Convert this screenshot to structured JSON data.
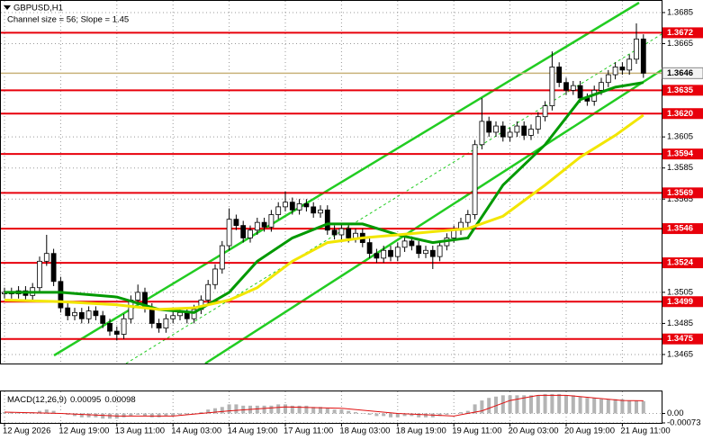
{
  "chart_data": [
    {
      "type": "candlestick",
      "title": "GBPUSD,H1",
      "subtitle": "Channel size = 56; Slope = 1.45",
      "categories": [
        "12 Aug 2026",
        null,
        null,
        null,
        null,
        null,
        null,
        null,
        "12 Aug 19:00",
        null,
        null,
        null,
        null,
        null,
        null,
        null,
        "13 Aug 11:00",
        null,
        null,
        null,
        null,
        null,
        null,
        null,
        "14 Aug 03:00",
        null,
        null,
        null,
        null,
        null,
        null,
        null,
        "14 Aug 19:00",
        null,
        null,
        null,
        null,
        null,
        null,
        null,
        "17 Aug 11:00",
        null,
        null,
        null,
        null,
        null,
        null,
        null,
        "18 Aug 03:00",
        null,
        null,
        null,
        null,
        null,
        null,
        null,
        "18 Aug 19:00",
        null,
        null,
        null,
        null,
        null,
        null,
        null,
        "19 Aug 11:00",
        null,
        null,
        null,
        null,
        null,
        null,
        null,
        "20 Aug 03:00",
        null,
        null,
        null,
        null,
        null,
        null,
        null,
        "20 Aug 19:00",
        null,
        null,
        null,
        null,
        null,
        null,
        null,
        "21 Aug 11:00",
        null,
        null,
        null
      ],
      "open": [
        1.3504,
        1.3505,
        1.3504,
        1.3506,
        1.3503,
        1.3508,
        1.3525,
        1.353,
        1.3512,
        1.3495,
        1.349,
        1.3492,
        1.3488,
        1.3493,
        1.349,
        1.3485,
        1.348,
        1.3478,
        1.3488,
        1.35,
        1.3505,
        1.3495,
        1.3485,
        1.3482,
        1.3488,
        1.349,
        1.3492,
        1.3488,
        1.3494,
        1.35,
        1.351,
        1.352,
        1.3535,
        1.3552,
        1.3548,
        1.354,
        1.3545,
        1.355,
        1.3547,
        1.3555,
        1.356,
        1.3563,
        1.3558,
        1.3562,
        1.356,
        1.3556,
        1.3558,
        1.3545,
        1.3542,
        1.3546,
        1.354,
        1.3543,
        1.3537,
        1.353,
        1.3527,
        1.3532,
        1.3528,
        1.3534,
        1.3538,
        1.3535,
        1.353,
        1.3532,
        1.3528,
        1.3535,
        1.354,
        1.3545,
        1.355,
        1.3555,
        1.36,
        1.3615,
        1.3608,
        1.3612,
        1.3605,
        1.3608,
        1.3612,
        1.3606,
        1.361,
        1.3618,
        1.3625,
        1.365,
        1.364,
        1.3635,
        1.3638,
        1.363,
        1.3628,
        1.3635,
        1.364,
        1.3645,
        1.365,
        1.3648,
        1.3655,
        1.3668
      ],
      "high": [
        1.3508,
        1.3508,
        1.3509,
        1.3509,
        1.3511,
        1.3528,
        1.3542,
        1.3533,
        1.3515,
        1.3498,
        1.3495,
        1.3495,
        1.3496,
        1.3496,
        1.3493,
        1.3488,
        1.3483,
        1.3491,
        1.3503,
        1.351,
        1.3508,
        1.3498,
        1.3488,
        1.3491,
        1.3493,
        1.3495,
        1.3495,
        1.3497,
        1.3503,
        1.3513,
        1.3523,
        1.3538,
        1.3559,
        1.3555,
        1.3551,
        1.3548,
        1.3553,
        1.3553,
        1.3558,
        1.3563,
        1.357,
        1.3566,
        1.3565,
        1.3565,
        1.3563,
        1.3561,
        1.3561,
        1.3548,
        1.3549,
        1.3549,
        1.3546,
        1.3546,
        1.354,
        1.3533,
        1.3535,
        1.3535,
        1.3537,
        1.3541,
        1.3541,
        1.3538,
        1.3535,
        1.3535,
        1.3538,
        1.3543,
        1.3548,
        1.3553,
        1.3558,
        1.3603,
        1.363,
        1.3618,
        1.3615,
        1.3615,
        1.3611,
        1.3615,
        1.3615,
        1.3613,
        1.3621,
        1.3628,
        1.366,
        1.3653,
        1.3643,
        1.3641,
        1.3641,
        1.3633,
        1.3638,
        1.3643,
        1.3648,
        1.3653,
        1.3653,
        1.3658,
        1.3678,
        1.3671
      ],
      "low": [
        1.3501,
        1.3501,
        1.3501,
        1.35,
        1.35,
        1.3505,
        1.3522,
        1.3509,
        1.3492,
        1.3487,
        1.3487,
        1.3485,
        1.3485,
        1.3487,
        1.3482,
        1.3477,
        1.3474,
        1.3475,
        1.3485,
        1.3497,
        1.3492,
        1.3482,
        1.3479,
        1.3479,
        1.3485,
        1.3487,
        1.3485,
        1.3485,
        1.3491,
        1.3497,
        1.3507,
        1.3517,
        1.3532,
        1.3545,
        1.3537,
        1.3537,
        1.3542,
        1.3544,
        1.3544,
        1.3552,
        1.3557,
        1.3555,
        1.3555,
        1.3557,
        1.3553,
        1.3553,
        1.3542,
        1.3539,
        1.3539,
        1.3537,
        1.3537,
        1.3534,
        1.3527,
        1.3524,
        1.3524,
        1.3525,
        1.3525,
        1.3531,
        1.3532,
        1.3527,
        1.3527,
        1.352,
        1.3525,
        1.3532,
        1.3537,
        1.3542,
        1.3547,
        1.3552,
        1.3597,
        1.3605,
        1.3605,
        1.3602,
        1.3602,
        1.3605,
        1.3603,
        1.3603,
        1.3607,
        1.3615,
        1.3622,
        1.3637,
        1.3632,
        1.3632,
        1.3627,
        1.3625,
        1.3625,
        1.3632,
        1.3637,
        1.3642,
        1.3645,
        1.3645,
        1.3652,
        1.3643
      ],
      "close": [
        1.3505,
        1.3504,
        1.3506,
        1.3503,
        1.3508,
        1.3525,
        1.353,
        1.3512,
        1.3495,
        1.349,
        1.3492,
        1.3488,
        1.3493,
        1.349,
        1.3485,
        1.348,
        1.3478,
        1.3488,
        1.35,
        1.3505,
        1.3495,
        1.3485,
        1.3482,
        1.3488,
        1.349,
        1.3492,
        1.3488,
        1.3494,
        1.35,
        1.351,
        1.352,
        1.3535,
        1.3552,
        1.3548,
        1.354,
        1.3545,
        1.355,
        1.3547,
        1.3555,
        1.356,
        1.3563,
        1.3558,
        1.3562,
        1.356,
        1.3556,
        1.3558,
        1.3545,
        1.3542,
        1.3546,
        1.354,
        1.3543,
        1.3537,
        1.353,
        1.3527,
        1.3532,
        1.3528,
        1.3534,
        1.3538,
        1.3535,
        1.353,
        1.3532,
        1.3528,
        1.3535,
        1.354,
        1.3545,
        1.355,
        1.3555,
        1.36,
        1.3615,
        1.3608,
        1.3612,
        1.3605,
        1.3608,
        1.3612,
        1.3606,
        1.361,
        1.3618,
        1.3625,
        1.365,
        1.364,
        1.3635,
        1.3638,
        1.363,
        1.3628,
        1.3635,
        1.364,
        1.3645,
        1.365,
        1.3648,
        1.3655,
        1.3668,
        1.3646
      ],
      "series": [
        {
          "color": "#009900",
          "x": [
            0,
            8,
            16,
            22,
            27,
            32,
            36,
            41,
            46,
            51,
            56,
            61,
            66,
            71,
            77,
            82,
            87,
            91
          ],
          "values": [
            1.3505,
            1.3505,
            1.3502,
            1.3494,
            1.3492,
            1.3505,
            1.3525,
            1.354,
            1.3549,
            1.3549,
            1.3542,
            1.3537,
            1.354,
            1.3574,
            1.36,
            1.3629,
            1.3637,
            1.364
          ]
        },
        {
          "color": "#f2e600",
          "x": [
            0,
            8,
            16,
            22,
            27,
            32,
            36,
            41,
            46,
            51,
            56,
            61,
            66,
            71,
            77,
            82,
            87,
            91
          ],
          "values": [
            1.35,
            1.3499,
            1.3497,
            1.3494,
            1.3495,
            1.35,
            1.3508,
            1.3525,
            1.3537,
            1.354,
            1.3542,
            1.3544,
            1.3546,
            1.3554,
            1.3574,
            1.3592,
            1.3606,
            1.3619
          ]
        }
      ],
      "levels": [
        1.3672,
        1.3635,
        {
          "value": 1.362,
          "label": "1.3620"
        },
        1.3594,
        1.3569,
        1.3546,
        1.3524,
        1.3499,
        1.3475
      ],
      "level_color": "#e8000b",
      "price_line": 1.3646,
      "price_line_color": "#c8b27a",
      "ylim": [
        1.34592,
        1.36925
      ],
      "yticks": [
        1.3685,
        1.3665,
        1.3605,
        1.3585,
        1.3565,
        1.3505,
        1.3485,
        1.3465
      ],
      "grid": true
    },
    {
      "type": "macd",
      "title": "MACD(12,26,9)",
      "color": "#b4b4b4",
      "values": [
        0.0001,
        0.0001,
        0.0001,
        0,
        0.0001,
        0.0002,
        0.0003,
        0.0002,
        0,
        -0.0001,
        -0.0002,
        -0.0003,
        -0.0003,
        -0.0003,
        -0.0004,
        -0.0004,
        -0.0004,
        -0.0003,
        -0.0002,
        -0.0001,
        -0.0002,
        -0.0003,
        -0.0003,
        -0.0002,
        -0.0002,
        -0.0001,
        -0.0001,
        0,
        0.0001,
        0.0003,
        0.0004,
        0.0005,
        0.0007,
        0.0007,
        0.0006,
        0.0006,
        0.0006,
        0.0006,
        0.0006,
        0.0007,
        0.0007,
        0.0006,
        0.0006,
        0.0006,
        0.0005,
        0.0005,
        0.0004,
        0.0003,
        0.0003,
        0.0002,
        0.0001,
        0,
        -0.0001,
        -0.0002,
        -0.0002,
        -0.0003,
        -0.0003,
        -0.0002,
        -0.0002,
        -0.0003,
        -0.0003,
        -0.0003,
        -0.0002,
        -0.0001,
        0,
        0.0001,
        0.0002,
        0.0007,
        0.001,
        0.0012,
        0.0013,
        0.0014,
        0.0014,
        0.0014,
        0.0014,
        0.0014,
        0.0014,
        0.0015,
        0.0015,
        0.0015,
        0.0014,
        0.0014,
        0.0013,
        0.0012,
        0.0012,
        0.0011,
        0.0011,
        0.0011,
        0.0011,
        0.001,
        0.001,
        0.00095
      ],
      "signal": {
        "color": "#e01010",
        "x": [
          0,
          8,
          16,
          24,
          32,
          40,
          48,
          56,
          64,
          68,
          72,
          76,
          80,
          84,
          88,
          91
        ],
        "values": [
          0.0001,
          0,
          -0.0002,
          -0.0002,
          0.0002,
          0.0005,
          0.0004,
          0,
          -0.0002,
          0.0002,
          0.001,
          0.0014,
          0.0014,
          0.0012,
          0.001,
          0.00098
        ]
      },
      "ylim": [
        -0.00073,
        0.0017
      ],
      "yticks": [
        {
          "value": 0,
          "label": "0.00"
        },
        -0.00073
      ]
    }
  ]
}
